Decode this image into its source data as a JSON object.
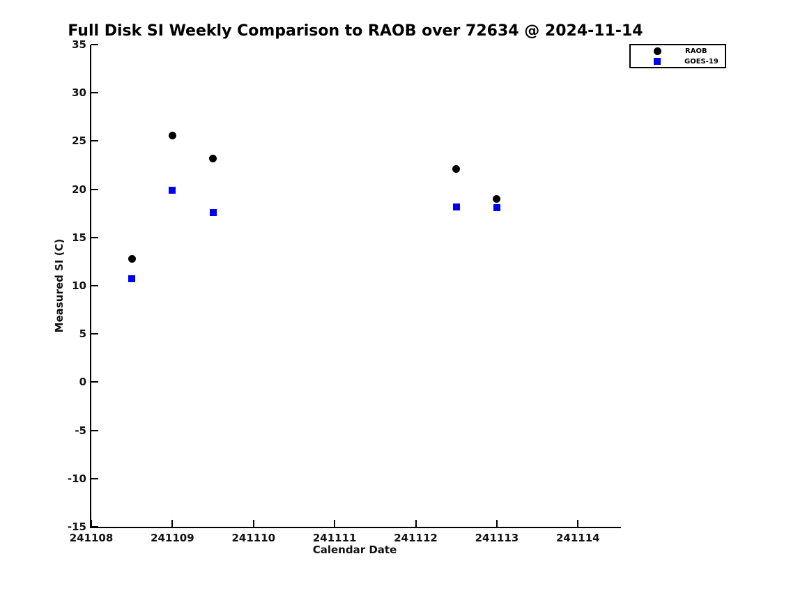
{
  "chart_data": {
    "type": "scatter",
    "title": "Full Disk SI Weekly Comparison to RAOB over 72634 @ 2024-11-14",
    "xlabel": "Calendar Date",
    "ylabel": "Measured SI (C)",
    "xlim": [
      241108,
      241114.53
    ],
    "ylim": [
      -15,
      35
    ],
    "xticks": [
      241108,
      241109,
      241110,
      241111,
      241112,
      241113,
      241114
    ],
    "yticks": [
      35,
      30,
      25,
      20,
      15,
      10,
      5,
      0,
      -5,
      -10,
      -15
    ],
    "grid": false,
    "legend_position": "top-right",
    "colors": {
      "raob": "#000000",
      "goes19": "#0000ee",
      "axis": "#000000"
    },
    "series": [
      {
        "name": "RAOB",
        "marker": "circle",
        "color": "#000000",
        "points": [
          [
            241108.5,
            12.8
          ],
          [
            241109.0,
            25.6
          ],
          [
            241109.5,
            23.2
          ],
          [
            241112.5,
            22.1
          ],
          [
            241113.0,
            19.0
          ]
        ]
      },
      {
        "name": "GOES-19",
        "marker": "square",
        "color": "#0000ee",
        "points": [
          [
            241108.5,
            10.7
          ],
          [
            241109.0,
            19.9
          ],
          [
            241109.5,
            17.6
          ],
          [
            241112.5,
            18.2
          ],
          [
            241113.0,
            18.1
          ]
        ]
      }
    ]
  }
}
